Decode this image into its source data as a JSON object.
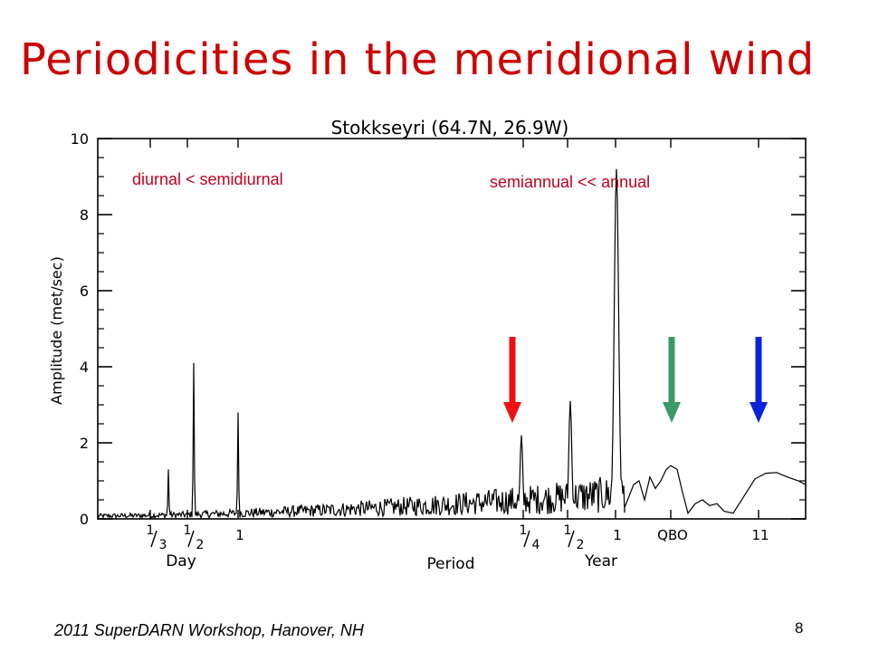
{
  "slide": {
    "title": "Periodicities in the meridional wind",
    "footer": "2011 SuperDARN Workshop, Hanover, NH",
    "page_number": "8"
  },
  "chart_data": {
    "type": "line",
    "title": "Stokkseyri (64.7N, 26.9W)",
    "ylabel": "Amplitude (met/sec)",
    "xlabel": "Period",
    "ylim": [
      0,
      10
    ],
    "yticks": [
      0,
      2,
      4,
      6,
      8,
      10
    ],
    "xscale": "frequency (reciprocal period), spanning sub-daily to 11-year periods",
    "x_tick_groups": [
      {
        "group": "Day",
        "ticks": [
          "1/3",
          "1/2",
          "1"
        ]
      },
      {
        "group": "Year",
        "ticks": [
          "1/4",
          "1/2",
          "1",
          "QBO",
          "11"
        ]
      }
    ],
    "annotations": [
      "diurnal < semidiurnal",
      "semiannual << annual"
    ],
    "peaks": [
      {
        "period": "1/3 day",
        "amplitude": 1.3
      },
      {
        "period": "1/2 day",
        "amplitude": 4.1
      },
      {
        "period": "1 day",
        "amplitude": 2.8
      },
      {
        "period": "1/4 year",
        "amplitude": 2.2
      },
      {
        "period": "1/2 year",
        "amplitude": 3.1
      },
      {
        "period": "1 year",
        "amplitude": 9.2
      },
      {
        "period": "QBO",
        "amplitude": 1.4
      },
      {
        "period": "11 year",
        "amplitude": 1.2
      }
    ],
    "arrows": [
      {
        "label": "1/4 year",
        "color": "#ee1111"
      },
      {
        "label": "QBO",
        "color": "#3a9966"
      },
      {
        "label": "11 year",
        "color": "#0a22dd"
      }
    ],
    "grid": false,
    "line_color": "#000000"
  }
}
